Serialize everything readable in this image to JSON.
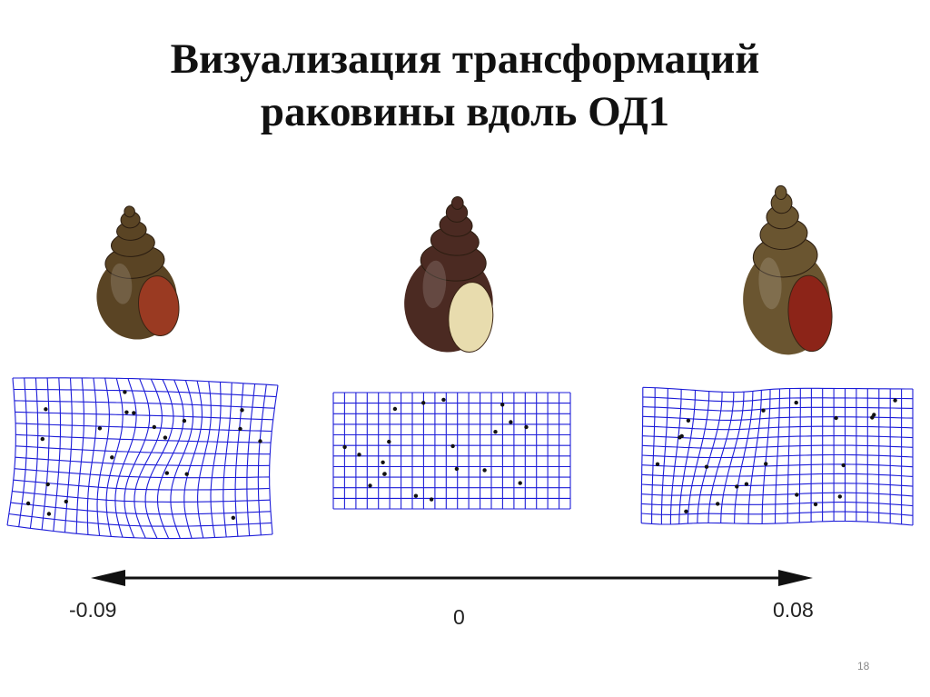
{
  "slide": {
    "title_line1": "Визуализация трансформаций",
    "title_line2": "раковины вдоль ОД1",
    "page_number": "18"
  },
  "axis": {
    "name": "ОД1",
    "min_label": "-0.09",
    "zero_label": "0",
    "max_label": "0.08",
    "bidirectional": true
  },
  "specimens": [
    {
      "id": "left",
      "axis_value": -0.09,
      "shell_color": "#5a4424",
      "aperture_color": "#9a3a22",
      "grid": "deformed"
    },
    {
      "id": "center",
      "axis_value": 0,
      "shell_color": "#4b2a22",
      "aperture_color": "#e8dcae",
      "grid": "regular"
    },
    {
      "id": "right",
      "axis_value": 0.08,
      "shell_color": "#6a5530",
      "aperture_color": "#8c2418",
      "grid": "deformed"
    }
  ],
  "colors": {
    "grid_line": "#1c1cd8",
    "landmark": "#111111",
    "axis_arrow": "#111111"
  }
}
